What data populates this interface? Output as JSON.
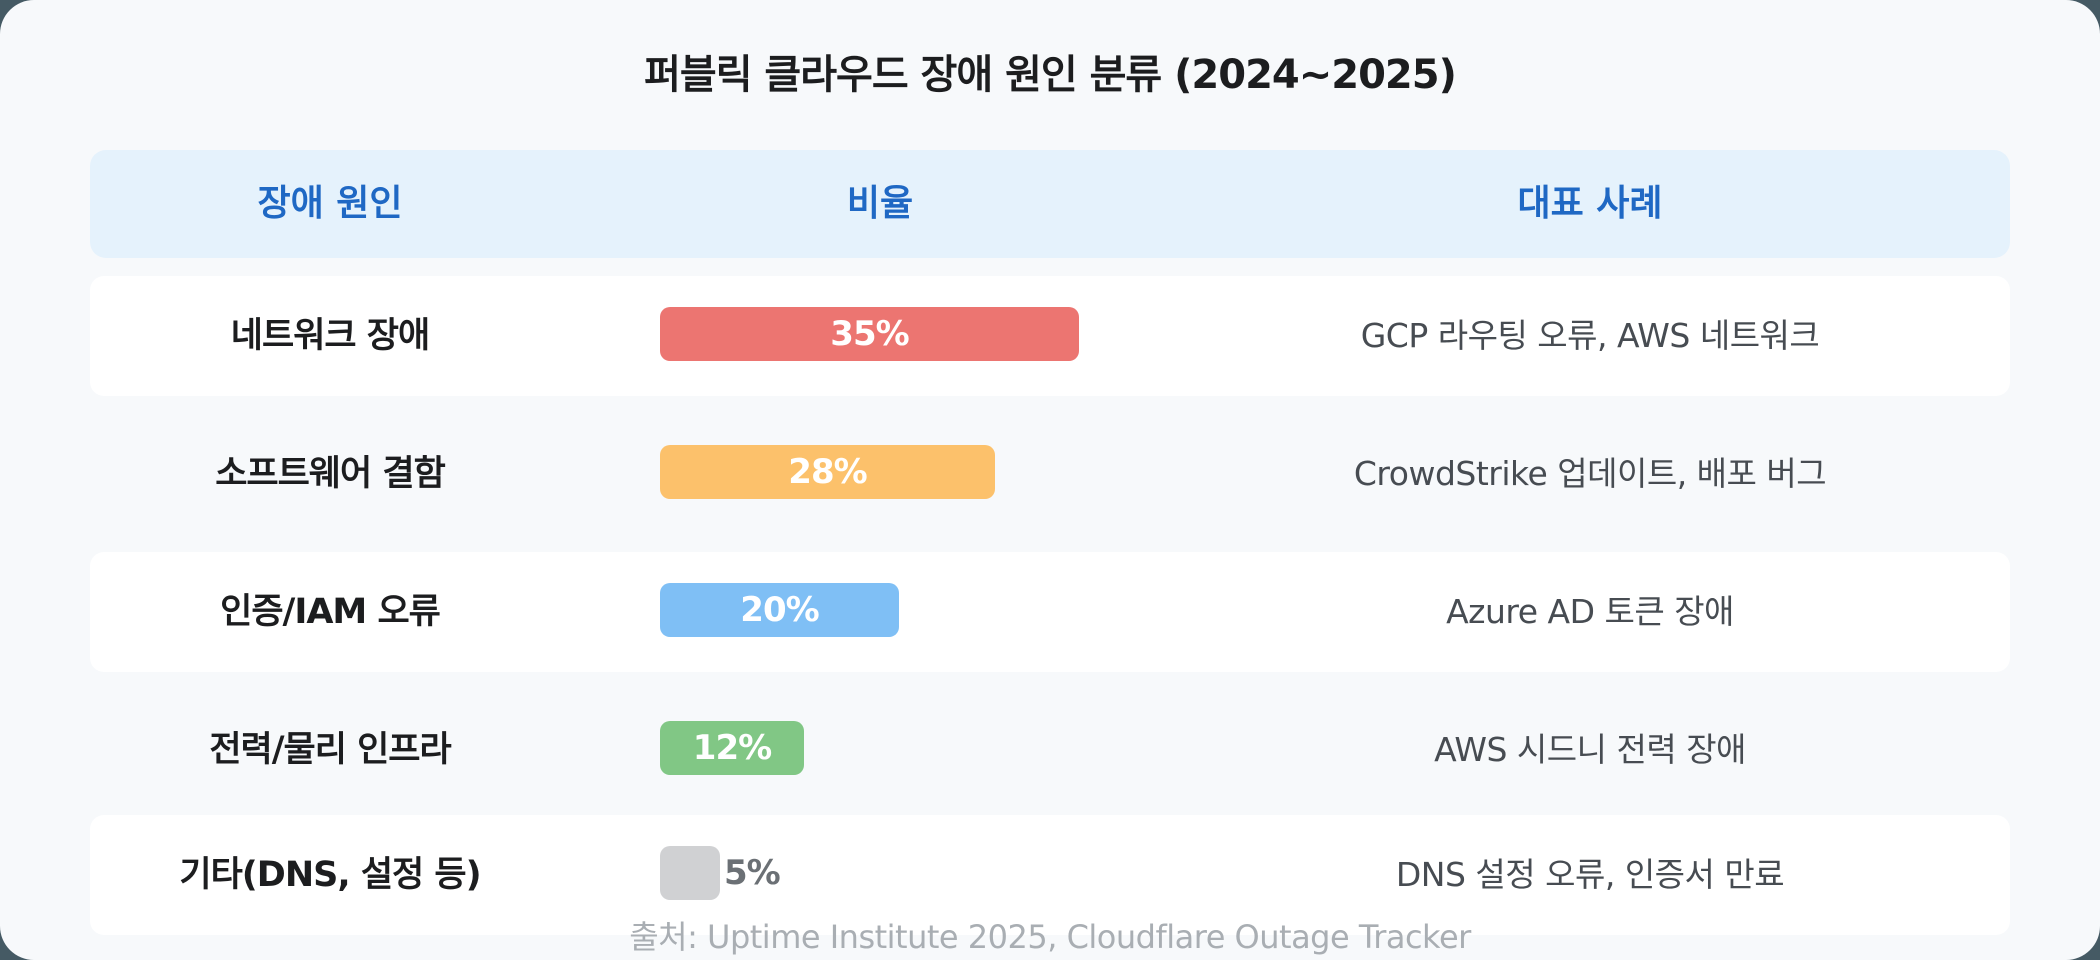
{
  "title": "퍼블릭 클라우드 장애 원인 분류 (2024~2025)",
  "header": {
    "cause": "장애 원인",
    "ratio": "비율",
    "example": "대표 사례"
  },
  "rows": [
    {
      "cause": "네트워크 장애",
      "ratio_label": "35%",
      "ratio": 35,
      "color": "#ec7571",
      "example": "GCP 라우팅 오류, AWS 네트워크"
    },
    {
      "cause": "소프트웨어 결함",
      "ratio_label": "28%",
      "ratio": 28,
      "color": "#fcc16b",
      "example": "CrowdStrike 업데이트, 배포 버그"
    },
    {
      "cause": "인증/IAM 오류",
      "ratio_label": "20%",
      "ratio": 20,
      "color": "#7fbff5",
      "example": "Azure AD 토큰 장애"
    },
    {
      "cause": "전력/물리 인프라",
      "ratio_label": "12%",
      "ratio": 12,
      "color": "#81c785",
      "example": "AWS 시드니 전력 장애"
    },
    {
      "cause": "기타(DNS, 설정 등)",
      "ratio_label": "5%",
      "ratio": 5,
      "color": "#d0d1d3",
      "example": "DNS 설정 오류, 인증서 만료"
    }
  ],
  "footer": "출처: Uptime Institute 2025, Cloudflare Outage Tracker",
  "chart_data": {
    "type": "table",
    "title": "퍼블릭 클라우드 장애 원인 분류 (2024~2025)",
    "columns": [
      "장애 원인",
      "비율",
      "대표 사례"
    ],
    "categories": [
      "네트워크 장애",
      "소프트웨어 결함",
      "인증/IAM 오류",
      "전력/물리 인프라",
      "기타(DNS, 설정 등)"
    ],
    "values": [
      35,
      28,
      20,
      12,
      5
    ],
    "unit": "%",
    "examples": [
      "GCP 라우팅 오류, AWS 네트워크",
      "CrowdStrike 업데이트, 배포 버그",
      "Azure AD 토큰 장애",
      "AWS 시드니 전력 장애",
      "DNS 설정 오류, 인증서 만료"
    ],
    "colors": [
      "#ec7571",
      "#fcc16b",
      "#7fbff5",
      "#81c785",
      "#d0d1d3"
    ],
    "source": "출처: Uptime Institute 2025, Cloudflare Outage Tracker"
  }
}
